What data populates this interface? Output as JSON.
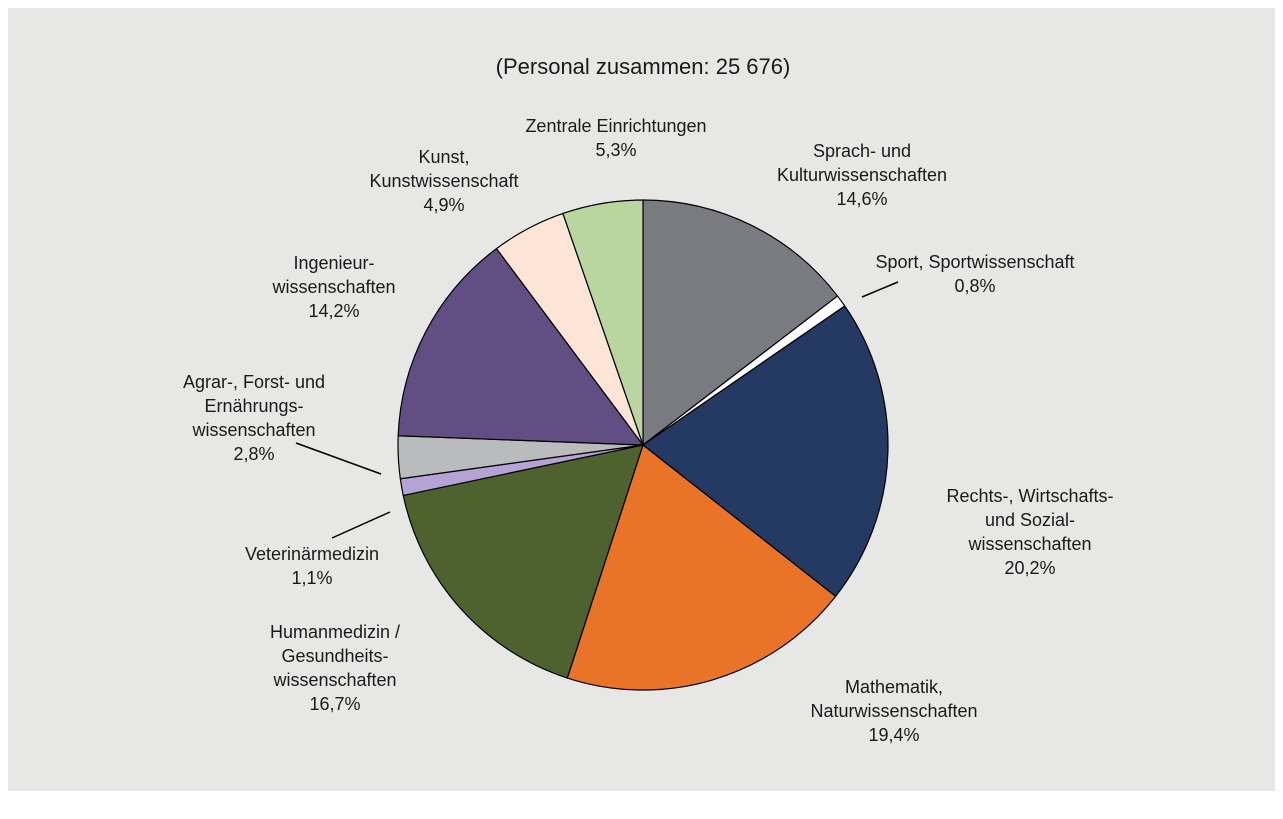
{
  "chart_data": {
    "type": "pie",
    "title": "(Personal zusammen: 25 676)",
    "categories": [
      [
        "Sprach- und",
        "Kulturwissenschaften"
      ],
      [
        "Sport, Sportwissenschaft"
      ],
      [
        "Rechts-, Wirtschafts-",
        "und Sozial-",
        "wissenschaften"
      ],
      [
        "Mathematik,",
        "Naturwissenschaften"
      ],
      [
        "Humanmedizin /",
        "Gesundheits-",
        "wissenschaften"
      ],
      [
        "Veterinärmedizin"
      ],
      [
        "Agrar-, Forst- und",
        "Ernährungs-",
        "wissenschaften"
      ],
      [
        "Ingenieur-",
        "wissenschaften"
      ],
      [
        "Kunst,",
        "Kunstwissenschaft"
      ],
      [
        "Zentrale Einrichtungen"
      ]
    ],
    "values": [
      14.6,
      0.8,
      20.2,
      19.4,
      16.7,
      1.1,
      2.8,
      14.2,
      4.9,
      5.3
    ],
    "value_labels": [
      "14,6%",
      "0,8%",
      "20,2%",
      "19,4%",
      "16,7%",
      "1,1%",
      "2,8%",
      "14,2%",
      "4,9%",
      "5,3%"
    ],
    "colors": [
      "#7a7b80",
      "#ffffff",
      "#243a63",
      "#e97428",
      "#4d622e",
      "#b4a3d4",
      "#b9bbbd",
      "#614f84",
      "#fde5d6",
      "#b9d5a0"
    ]
  }
}
